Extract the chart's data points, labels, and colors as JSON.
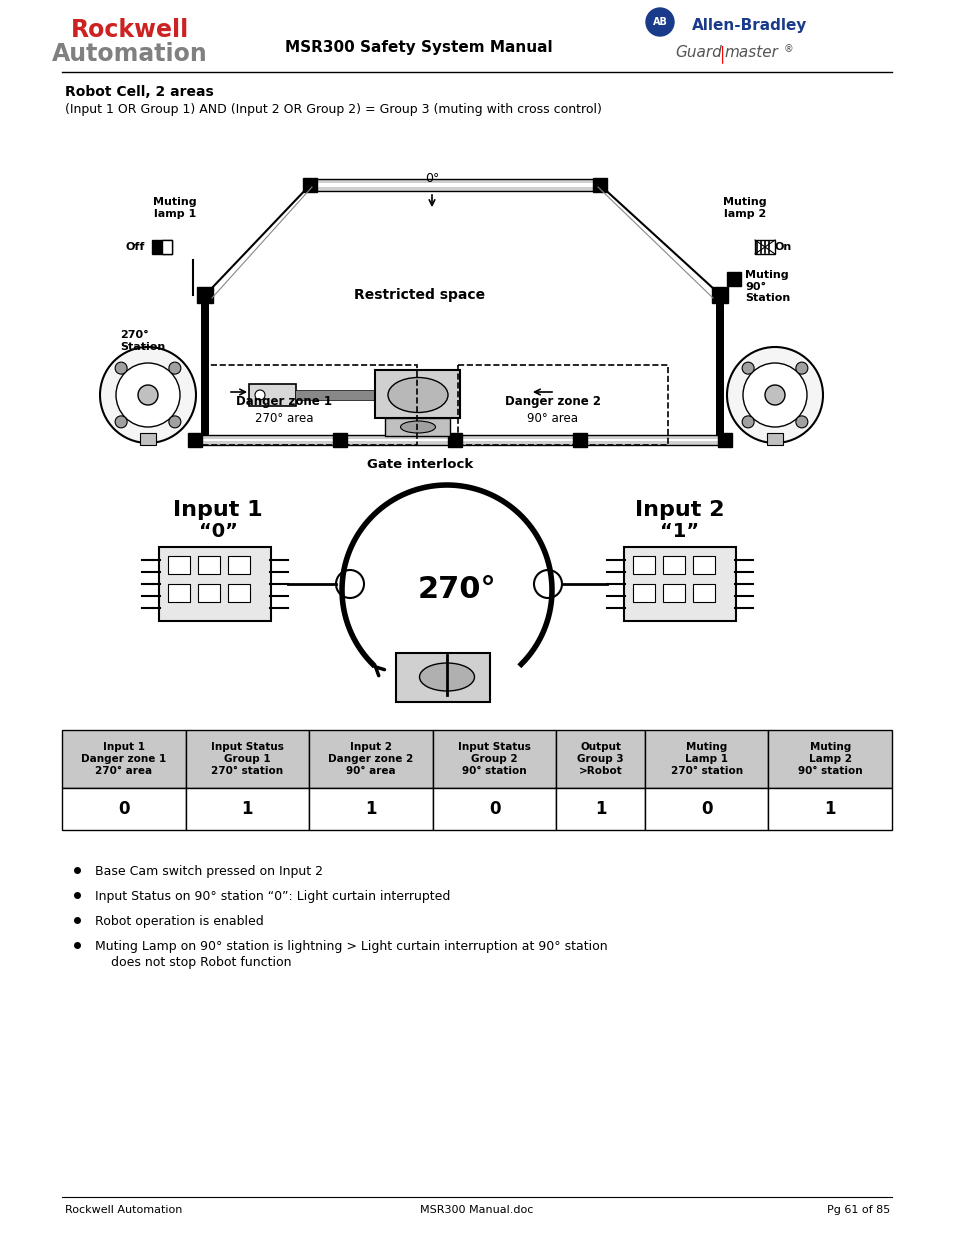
{
  "title_bold": "Robot Cell, 2 areas",
  "title_sub": "(Input 1 OR Group 1) AND (Input 2 OR Group 2) = Group 3 (muting with cross control)",
  "header_title": "MSR300 Safety System Manual",
  "footer_left": "Rockwell Automation",
  "footer_center": "MSR300 Manual.doc",
  "footer_right": "Pg 61 of 85",
  "table_headers": [
    "Input 1\nDanger zone 1\n270° area",
    "Input Status\nGroup 1\n270° station",
    "Input 2\nDanger zone 2\n90° area",
    "Input Status\nGroup 2\n90° station",
    "Output\nGroup 3\n>Robot",
    "Muting\nLamp 1\n270° station",
    "Muting\nLamp 2\n90° station"
  ],
  "table_values": [
    "0",
    "1",
    "1",
    "0",
    "1",
    "0",
    "1"
  ],
  "bullet_points": [
    "Base Cam switch pressed on Input 2",
    "Input Status on 90° station “0”: Light curtain interrupted",
    "Robot operation is enabled",
    "Muting Lamp on 90° station is lightning > Light curtain interruption at 90° station",
    "    does not stop Robot function"
  ],
  "bg_color": "#ffffff"
}
